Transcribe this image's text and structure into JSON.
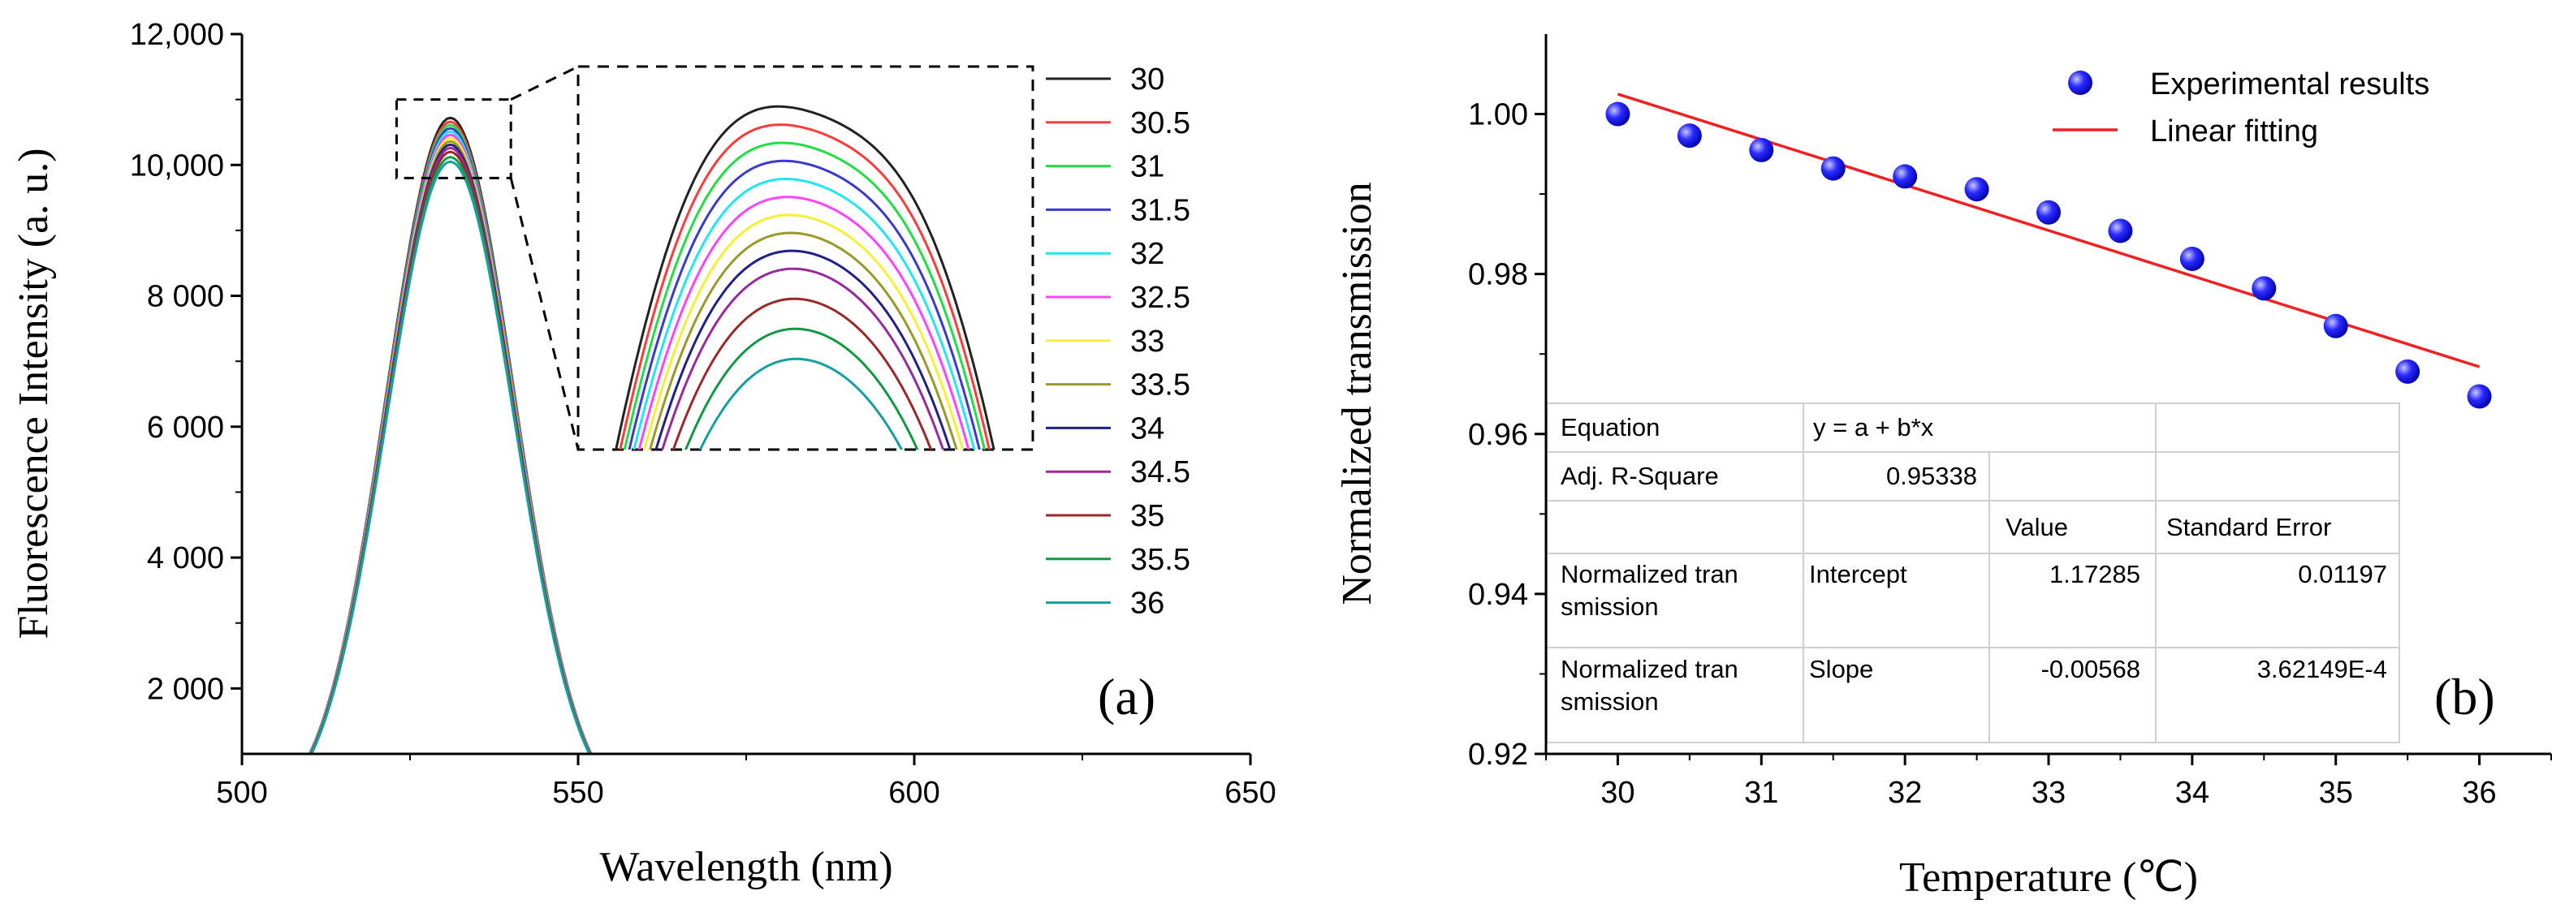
{
  "chart_data": [
    {
      "type": "line",
      "panel_label": "(a)",
      "xlabel": "Wavelength (nm)",
      "ylabel": "Fluorescence Intensity (a. u.)",
      "xlim": [
        500,
        650
      ],
      "ylim": [
        1000,
        12000
      ],
      "xticks": [
        500,
        550,
        600,
        650
      ],
      "xtick_labels": [
        "500",
        "550",
        "600",
        "650"
      ],
      "yticks": [
        2000,
        4000,
        6000,
        8000,
        10000,
        12000
      ],
      "ytick_labels": [
        "2 000",
        "4 000",
        "6 000",
        "8 000",
        "10,000",
        "12,000"
      ],
      "peak_wavelength": 531,
      "peak_width_sigma": 9.5,
      "baseline": 60,
      "legend_position": "right",
      "inset": {
        "zoom_x": [
          523,
          540
        ],
        "zoom_y": [
          9800,
          11000
        ]
      },
      "series": [
        {
          "name": "30",
          "color": "#222222",
          "peak": 10720
        },
        {
          "name": "30.5",
          "color": "#ff3b3b",
          "peak": 10660
        },
        {
          "name": "31",
          "color": "#22dd44",
          "peak": 10610
        },
        {
          "name": "31.5",
          "color": "#3a3ad0",
          "peak": 10560
        },
        {
          "name": "32",
          "color": "#22e6f0",
          "peak": 10510
        },
        {
          "name": "32.5",
          "color": "#ff44ff",
          "peak": 10460
        },
        {
          "name": "33",
          "color": "#f5f035",
          "peak": 10410
        },
        {
          "name": "33.5",
          "color": "#9a9a2a",
          "peak": 10360
        },
        {
          "name": "34",
          "color": "#202088",
          "peak": 10310
        },
        {
          "name": "34.5",
          "color": "#9a2a9a",
          "peak": 10260
        },
        {
          "name": "35",
          "color": "#9a2a2a",
          "peak": 10200
        },
        {
          "name": "35.5",
          "color": "#119944",
          "peak": 10120
        },
        {
          "name": "36",
          "color": "#14a0a0",
          "peak": 10050
        }
      ]
    },
    {
      "type": "scatter",
      "panel_label": "(b)",
      "xlabel": "Temperature (℃)",
      "ylabel": "Normalized transmission",
      "xlim": [
        29.5,
        36.5
      ],
      "ylim": [
        0.92,
        1.01
      ],
      "xticks": [
        30,
        31,
        32,
        33,
        34,
        35,
        36
      ],
      "xtick_labels": [
        "30",
        "31",
        "32",
        "33",
        "34",
        "35",
        "36"
      ],
      "yticks": [
        0.92,
        0.94,
        0.96,
        0.98,
        1.0
      ],
      "ytick_labels": [
        "0.92",
        "0.94",
        "0.96",
        "0.98",
        "1.00"
      ],
      "legend_position": "top-right",
      "point_color": "#1a1aee",
      "fit_color": "#ee2222",
      "series": [
        {
          "name": "Experimental results",
          "x": [
            30,
            30.5,
            31,
            31.5,
            32,
            32.5,
            33,
            33.5,
            34,
            34.5,
            35,
            35.5,
            36
          ],
          "y": [
            1.0,
            0.9973,
            0.9955,
            0.9932,
            0.9922,
            0.9906,
            0.9877,
            0.9854,
            0.9819,
            0.9782,
            0.9735,
            0.9678,
            0.9647
          ]
        },
        {
          "name": "Linear fitting",
          "x": [
            30,
            36
          ],
          "y": [
            1.0025,
            0.9684
          ]
        }
      ],
      "fit_table": {
        "equation_label": "Equation",
        "equation_value": "y = a + b*x",
        "r2_label": "Adj. R-Square",
        "r2_value": "0.95338",
        "value_header": "Value",
        "error_header": "Standard Error",
        "rows": [
          {
            "name_line1": "Normalized tran",
            "name_line2": "smission",
            "param": "Intercept",
            "value": "1.17285",
            "error": "0.01197"
          },
          {
            "name_line1": "Normalized tran",
            "name_line2": "smission",
            "param": "Slope",
            "value": "-0.00568",
            "error": "3.62149E-4"
          }
        ]
      }
    }
  ]
}
